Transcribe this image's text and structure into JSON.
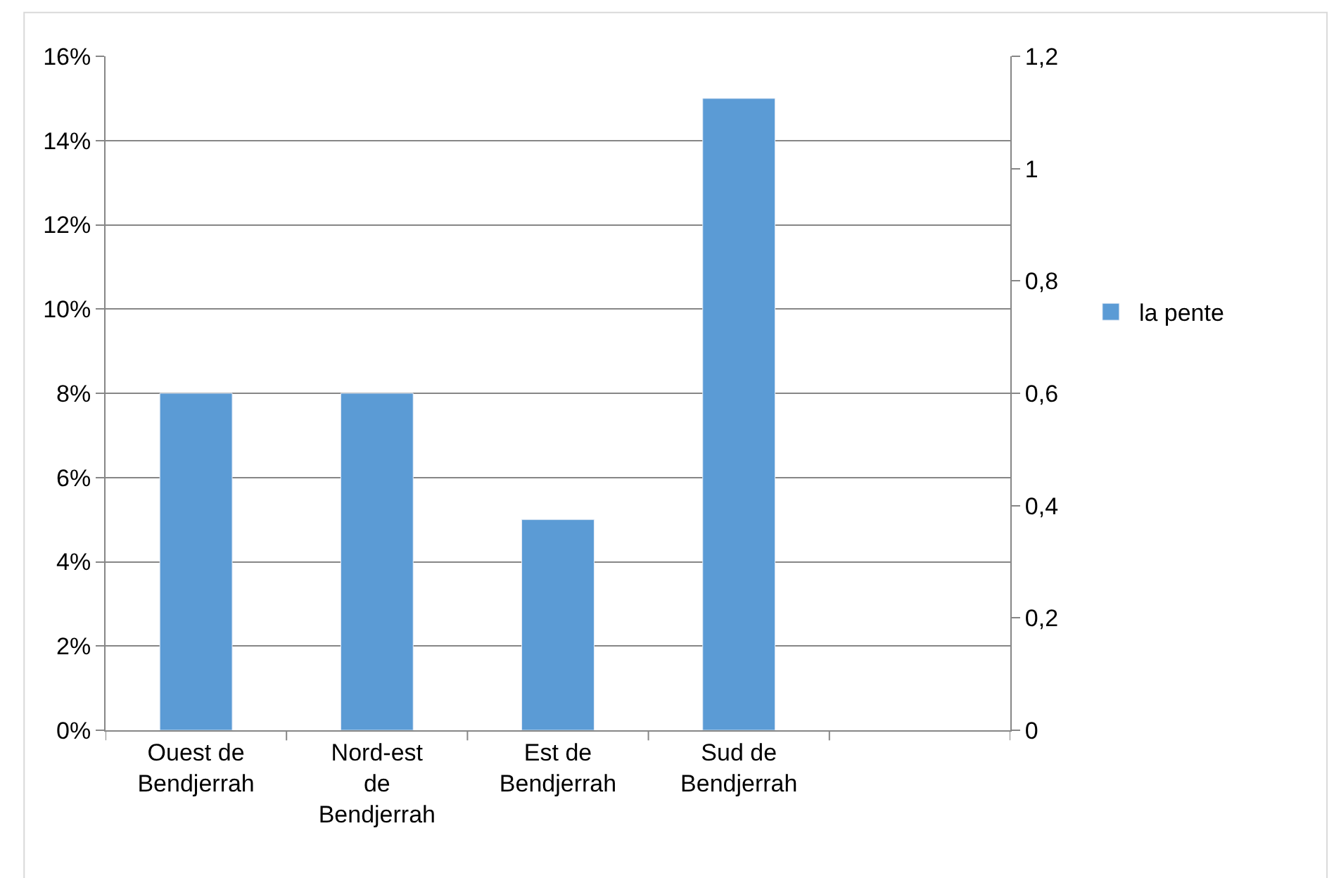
{
  "chart_data": {
    "type": "bar",
    "categories": [
      "Ouest de Bendjerrah",
      "Nord-est de Bendjerrah",
      "Est de Bendjerrah",
      "Sud de Bendjerrah",
      null
    ],
    "series": [
      {
        "name": "la pente",
        "color": "#5b9bd5",
        "values": [
          8,
          8,
          5,
          15,
          null
        ]
      }
    ],
    "ylim": [
      0,
      16
    ],
    "yticks": [
      {
        "value": 0,
        "label": "0%"
      },
      {
        "value": 2,
        "label": "2%"
      },
      {
        "value": 4,
        "label": "4%"
      },
      {
        "value": 6,
        "label": "6%"
      },
      {
        "value": 8,
        "label": "8%"
      },
      {
        "value": 10,
        "label": "10%"
      },
      {
        "value": 12,
        "label": "12%"
      },
      {
        "value": 14,
        "label": "14%"
      },
      {
        "value": 16,
        "label": "16%"
      }
    ],
    "y2lim": [
      0,
      1.2
    ],
    "y2ticks": [
      0,
      {
        "value": 0.2,
        "label": "0,2"
      },
      {
        "value": 0.4,
        "label": "0,4"
      },
      {
        "value": 0.6,
        "label": "0,6"
      },
      {
        "value": 0.8,
        "label": "0,8"
      },
      1,
      {
        "value": 1.2,
        "label": "1,2"
      }
    ],
    "grid": "y",
    "legend": "right"
  }
}
